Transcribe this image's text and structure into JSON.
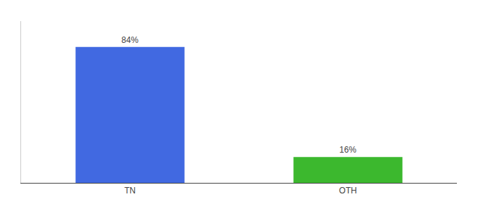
{
  "chart_data": {
    "type": "bar",
    "categories": [
      "TN",
      "OTH"
    ],
    "values": [
      84,
      16
    ],
    "value_labels": [
      "84%",
      "16%"
    ],
    "colors": [
      "#4169e1",
      "#3cb82e"
    ],
    "ylim": [
      0,
      100
    ],
    "grid": false,
    "data_labels": true,
    "tick_labels": "x"
  }
}
